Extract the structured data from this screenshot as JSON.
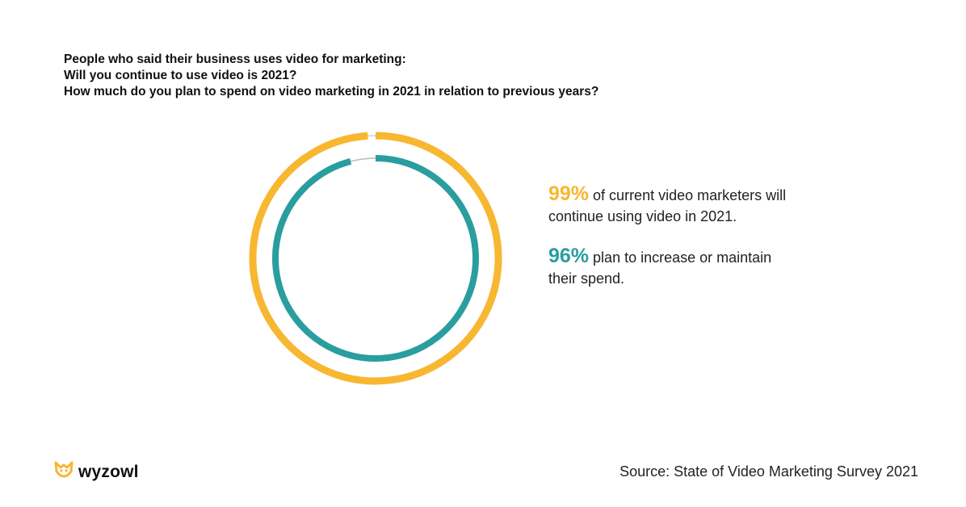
{
  "title": {
    "line1": "People who said their business uses video for marketing:",
    "line2": "Will you continue to use video is 2021?",
    "line3": "How much do you plan to spend on video marketing in 2021 in relation to previous years?"
  },
  "chart_data": {
    "type": "pie",
    "series": [
      {
        "value": 99,
        "color": "#f7b731"
      },
      {
        "value": 96,
        "color": "#2a9d9f"
      }
    ],
    "remainder_color": "#b9b9b9"
  },
  "stats": [
    {
      "value": "99%",
      "text": " of current video marketers will continue using video in 2021.",
      "color": "#f7b731"
    },
    {
      "value": "96%",
      "text": " plan to increase or maintain their spend.",
      "color": "#2a9d9f"
    }
  ],
  "logo": {
    "text": "wyzowl",
    "icon": "owl-icon",
    "color": "#f7b731"
  },
  "source": "Source: State of Video Marketing Survey 2021"
}
